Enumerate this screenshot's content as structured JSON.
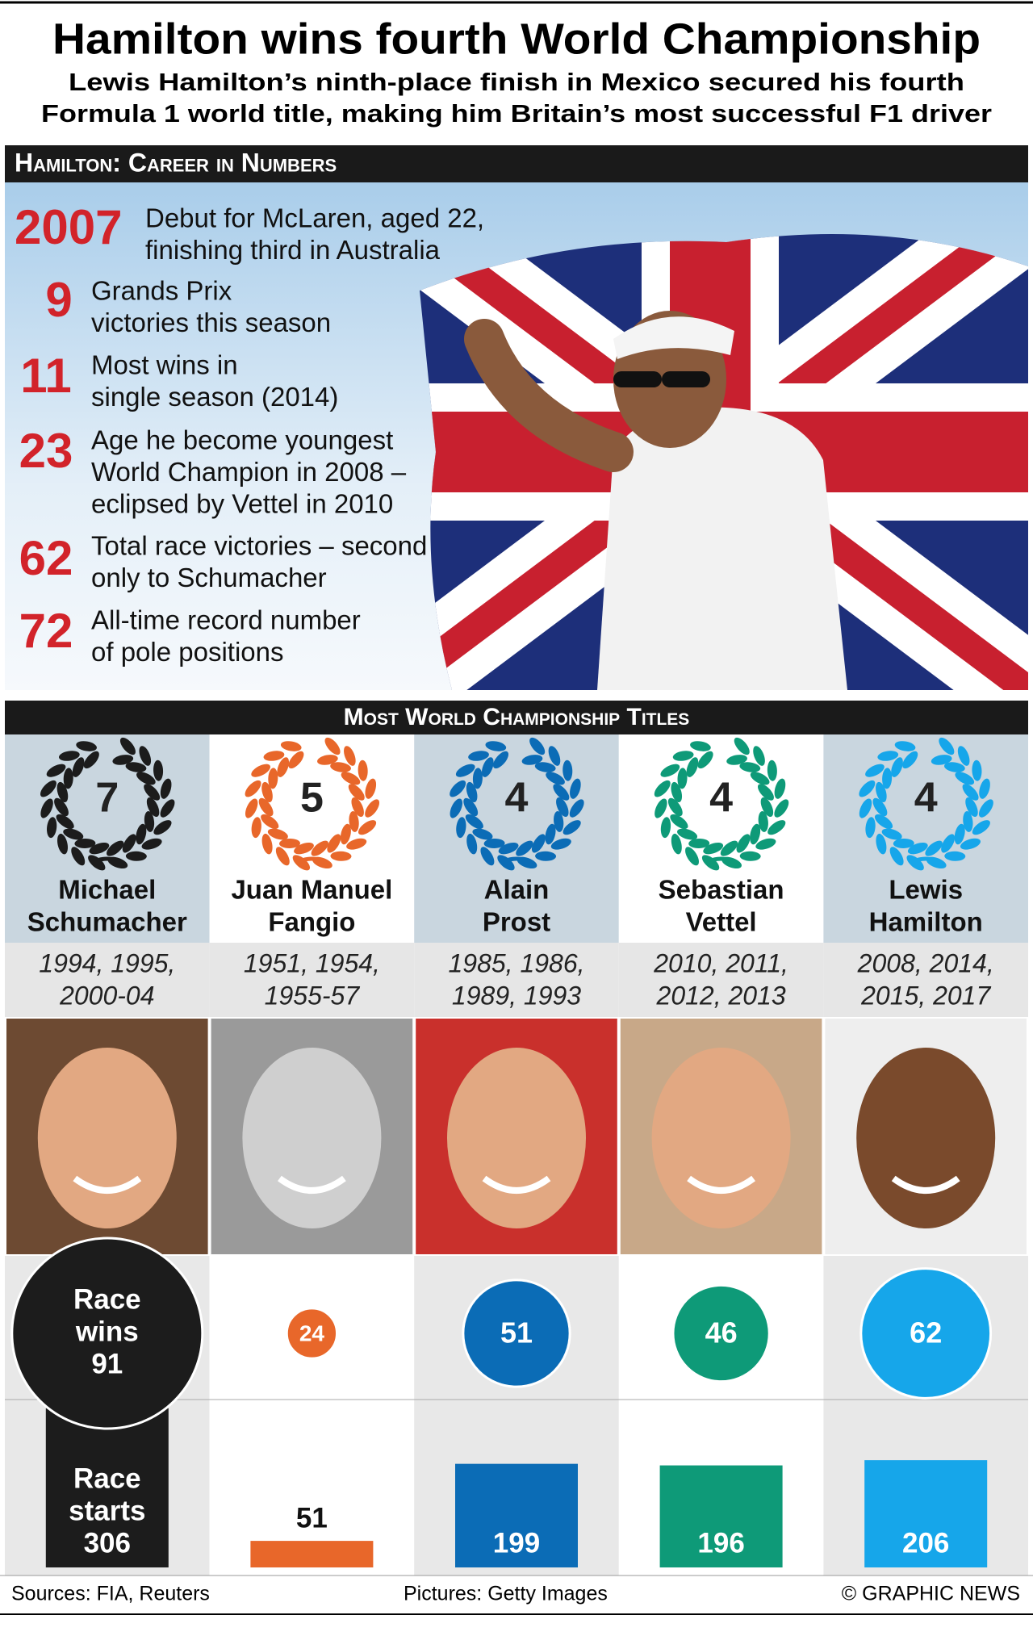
{
  "header": {
    "title": "Hamilton wins fourth World Championship",
    "subtitle": [
      "Lewis Hamilton’s ninth-place finish in Mexico secured his fourth",
      "Formula 1 world title, making him Britain’s most successful F1 driver"
    ]
  },
  "career": {
    "heading": "Hamilton: Career in Numbers",
    "stats": [
      {
        "number": 2007,
        "lines": [
          "Debut for McLaren, aged 22,",
          "finishing third in Australia"
        ]
      },
      {
        "number": 9,
        "lines": [
          "Grands Prix",
          "victories this season"
        ]
      },
      {
        "number": 11,
        "lines": [
          "Most wins in",
          "single season (2014)"
        ]
      },
      {
        "number": 23,
        "lines": [
          "Age he become youngest",
          "World Champion in 2008 –",
          "eclipsed by Vettel in 2010"
        ]
      },
      {
        "number": 62,
        "lines": [
          "Total race victories – second",
          "only to Schumacher"
        ]
      },
      {
        "number": 72,
        "lines": [
          "All-time record number",
          "of pole positions"
        ]
      }
    ]
  },
  "titles": {
    "heading": "Most World Championship Titles",
    "race_wins_label": [
      "Race",
      "wins"
    ],
    "race_starts_label": [
      "Race",
      "starts"
    ],
    "drivers": [
      {
        "titles": 7,
        "name": [
          "Michael",
          "Schumacher"
        ],
        "years": [
          "1994, 1995,",
          "2000-04"
        ],
        "race_wins": 91,
        "race_starts": 306,
        "color": "#1c1c1c"
      },
      {
        "titles": 5,
        "name": [
          "Juan Manuel",
          "Fangio"
        ],
        "years": [
          "1951, 1954,",
          "1955-57"
        ],
        "race_wins": 24,
        "race_starts": 51,
        "color": "#e8672a"
      },
      {
        "titles": 4,
        "name": [
          "Alain",
          "Prost"
        ],
        "years": [
          "1985, 1986,",
          "1989, 1993"
        ],
        "race_wins": 51,
        "race_starts": 199,
        "color": "#0b6cb6"
      },
      {
        "titles": 4,
        "name": [
          "Sebastian",
          "Vettel"
        ],
        "years": [
          "2010, 2011,",
          "2012, 2013"
        ],
        "race_wins": 46,
        "race_starts": 196,
        "color": "#0e9a78"
      },
      {
        "titles": 4,
        "name": [
          "Lewis",
          "Hamilton"
        ],
        "years": [
          "2008, 2014,",
          "2015, 2017"
        ],
        "race_wins": 62,
        "race_starts": 206,
        "color": "#16a6ea"
      }
    ]
  },
  "footer": {
    "sources": "Sources: FIA, Reuters",
    "pictures": "Pictures: Getty Images",
    "credit": "© GRAPHIC NEWS"
  }
}
